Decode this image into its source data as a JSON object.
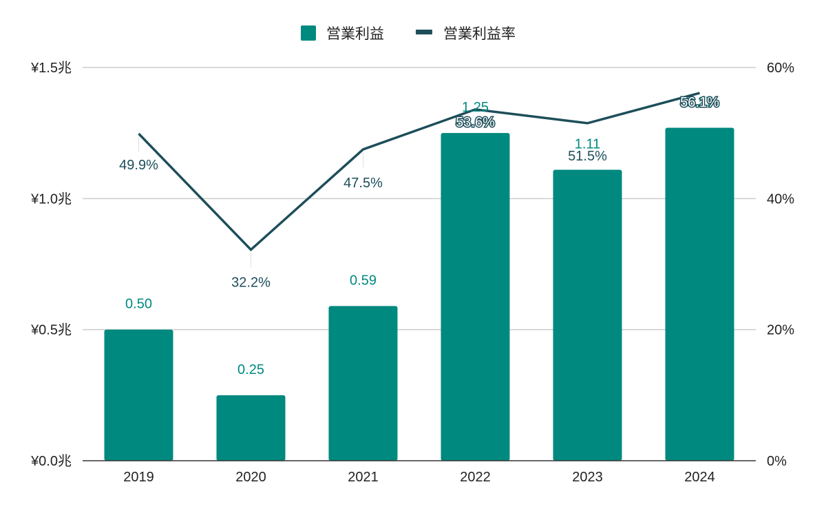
{
  "chart_data": {
    "type": "bar",
    "categories": [
      "2019",
      "2020",
      "2021",
      "2022",
      "2023",
      "2024"
    ],
    "series": [
      {
        "name": "営業利益",
        "type": "bar",
        "axis": "left",
        "values": [
          0.5,
          0.25,
          0.59,
          1.25,
          1.11,
          1.27
        ],
        "labels": [
          "0.50",
          "0.25",
          "0.59",
          "1.25",
          "1.11",
          "1.27"
        ]
      },
      {
        "name": "営業利益率",
        "type": "line",
        "axis": "right",
        "values": [
          49.9,
          32.2,
          47.5,
          53.6,
          51.5,
          56.1
        ],
        "labels": [
          "49.9%",
          "32.2%",
          "47.5%",
          "53.6%",
          "51.5%",
          "56.1%"
        ]
      }
    ],
    "y_left": {
      "ylim": [
        0,
        1.5
      ],
      "ticks": [
        0,
        0.5,
        1.0,
        1.5
      ],
      "tick_labels": [
        "¥0.0兆",
        "¥0.5兆",
        "¥1.0兆",
        "¥1.5兆"
      ]
    },
    "y_right": {
      "ylim": [
        0,
        60
      ],
      "ticks": [
        0,
        20,
        40,
        60
      ],
      "tick_labels": [
        "0%",
        "20%",
        "40%",
        "60%"
      ]
    },
    "grid": true,
    "legend_position": "top-center",
    "colors": {
      "bar": "#00897f",
      "line": "#1d4e5a",
      "grid": "#cccccc",
      "axis": "#333333"
    }
  }
}
